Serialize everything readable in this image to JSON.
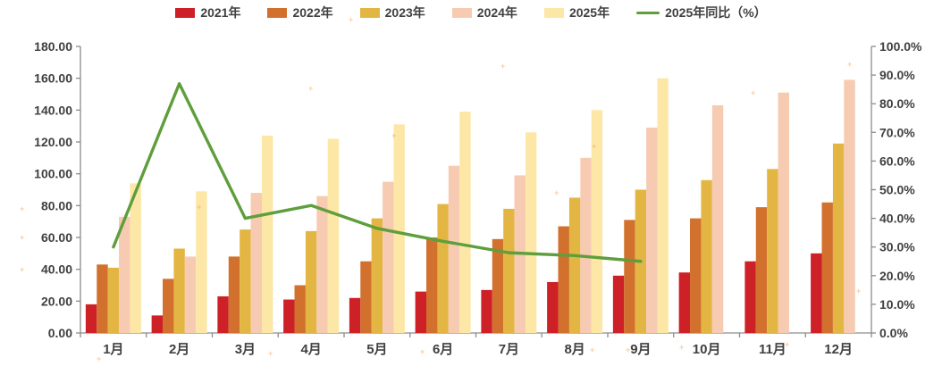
{
  "chart_data": {
    "type": "bar",
    "title": "",
    "legend_position": "top",
    "grid": false,
    "axis_color": "#8c8c8c",
    "text_color": "#404040",
    "categories": [
      "1月",
      "2月",
      "3月",
      "4月",
      "5月",
      "6月",
      "7月",
      "8月",
      "9月",
      "10月",
      "11月",
      "12月"
    ],
    "series": [
      {
        "name": "2021年",
        "type": "bar",
        "axis": "left",
        "color": "#cd2027",
        "values": [
          18,
          11,
          23,
          21,
          22,
          26,
          27,
          32,
          36,
          38,
          45,
          50
        ]
      },
      {
        "name": "2022年",
        "type": "bar",
        "axis": "left",
        "color": "#d2702d",
        "values": [
          43,
          34,
          48,
          30,
          45,
          60,
          59,
          67,
          71,
          72,
          79,
          82
        ]
      },
      {
        "name": "2023年",
        "type": "bar",
        "axis": "left",
        "color": "#e3b643",
        "values": [
          41,
          53,
          65,
          64,
          72,
          81,
          78,
          85,
          90,
          96,
          103,
          119
        ]
      },
      {
        "name": "2024年",
        "type": "bar",
        "axis": "left",
        "color": "#f6cbb2",
        "values": [
          73,
          48,
          88,
          86,
          95,
          105,
          99,
          110,
          129,
          143,
          151,
          159
        ]
      },
      {
        "name": "2025年",
        "type": "bar",
        "axis": "left",
        "color": "#fde7a6",
        "values": [
          94,
          89,
          124,
          122,
          131,
          139,
          126,
          140,
          160,
          null,
          null,
          null
        ]
      },
      {
        "name": "2025年同比（%）",
        "type": "line",
        "axis": "right",
        "color": "#5f9e3c",
        "values": [
          30,
          87,
          40,
          44.5,
          36.5,
          32,
          28,
          27,
          25,
          null,
          null,
          null
        ]
      }
    ],
    "left_axis": {
      "min": 0,
      "max": 180,
      "step": 20,
      "tick_labels": [
        "0.00",
        "20.00",
        "40.00",
        "60.00",
        "80.00",
        "100.00",
        "120.00",
        "140.00",
        "160.00",
        "180.00"
      ]
    },
    "right_axis": {
      "min": 0,
      "max": 100,
      "step": 10,
      "tick_labels": [
        "0.0%",
        "10.0%",
        "20.0%",
        "30.0%",
        "40.0%",
        "50.0%",
        "60.0%",
        "70.0%",
        "80.0%",
        "90.0%",
        "100.0%"
      ]
    }
  }
}
